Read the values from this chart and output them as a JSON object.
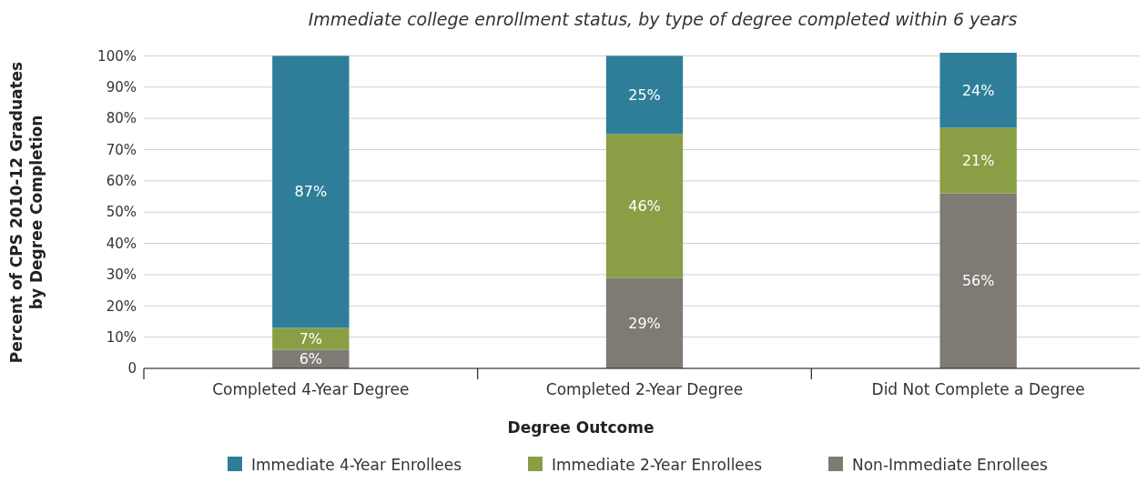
{
  "chart_data": {
    "type": "bar",
    "title": "Immediate college enrollment status, by type of degree completed within 6 years",
    "xlabel": "Degree Outcome",
    "ylabel": "Percent of CPS 2010-12 Graduates\nby Degree Completion",
    "categories": [
      "Completed 4-Year Degree",
      "Completed 2-Year Degree",
      "Did Not Complete a Degree"
    ],
    "series": [
      {
        "name": "Non-Immediate Enrollees",
        "color": "#7f7a73",
        "values": [
          6,
          29,
          56
        ],
        "value_labels": [
          "6%",
          "29%",
          "56%"
        ]
      },
      {
        "name": "Immediate 2-Year Enrollees",
        "color": "#8a9e45",
        "values": [
          7,
          46,
          21
        ],
        "value_labels": [
          "7%",
          "46%",
          "21%"
        ]
      },
      {
        "name": "Immediate 4-Year Enrollees",
        "color": "#2e7e99",
        "values": [
          87,
          25,
          24
        ],
        "value_labels": [
          "87%",
          "25%",
          "24%"
        ]
      }
    ],
    "stacked": true,
    "ylim": [
      0,
      101
    ],
    "yticks": [
      0,
      {
        "value": 10,
        "label": "10%"
      },
      {
        "value": 20,
        "label": "20%"
      },
      {
        "value": 30,
        "label": "30%"
      },
      {
        "value": 40,
        "label": "40%"
      },
      {
        "value": 50,
        "label": "50%"
      },
      {
        "value": 60,
        "label": "60%"
      },
      {
        "value": 70,
        "label": "70%"
      },
      {
        "value": 80,
        "label": "80%"
      },
      {
        "value": 90,
        "label": "90%"
      },
      {
        "value": 100,
        "label": "100%"
      }
    ],
    "grid": "y",
    "legend": "bottom"
  }
}
